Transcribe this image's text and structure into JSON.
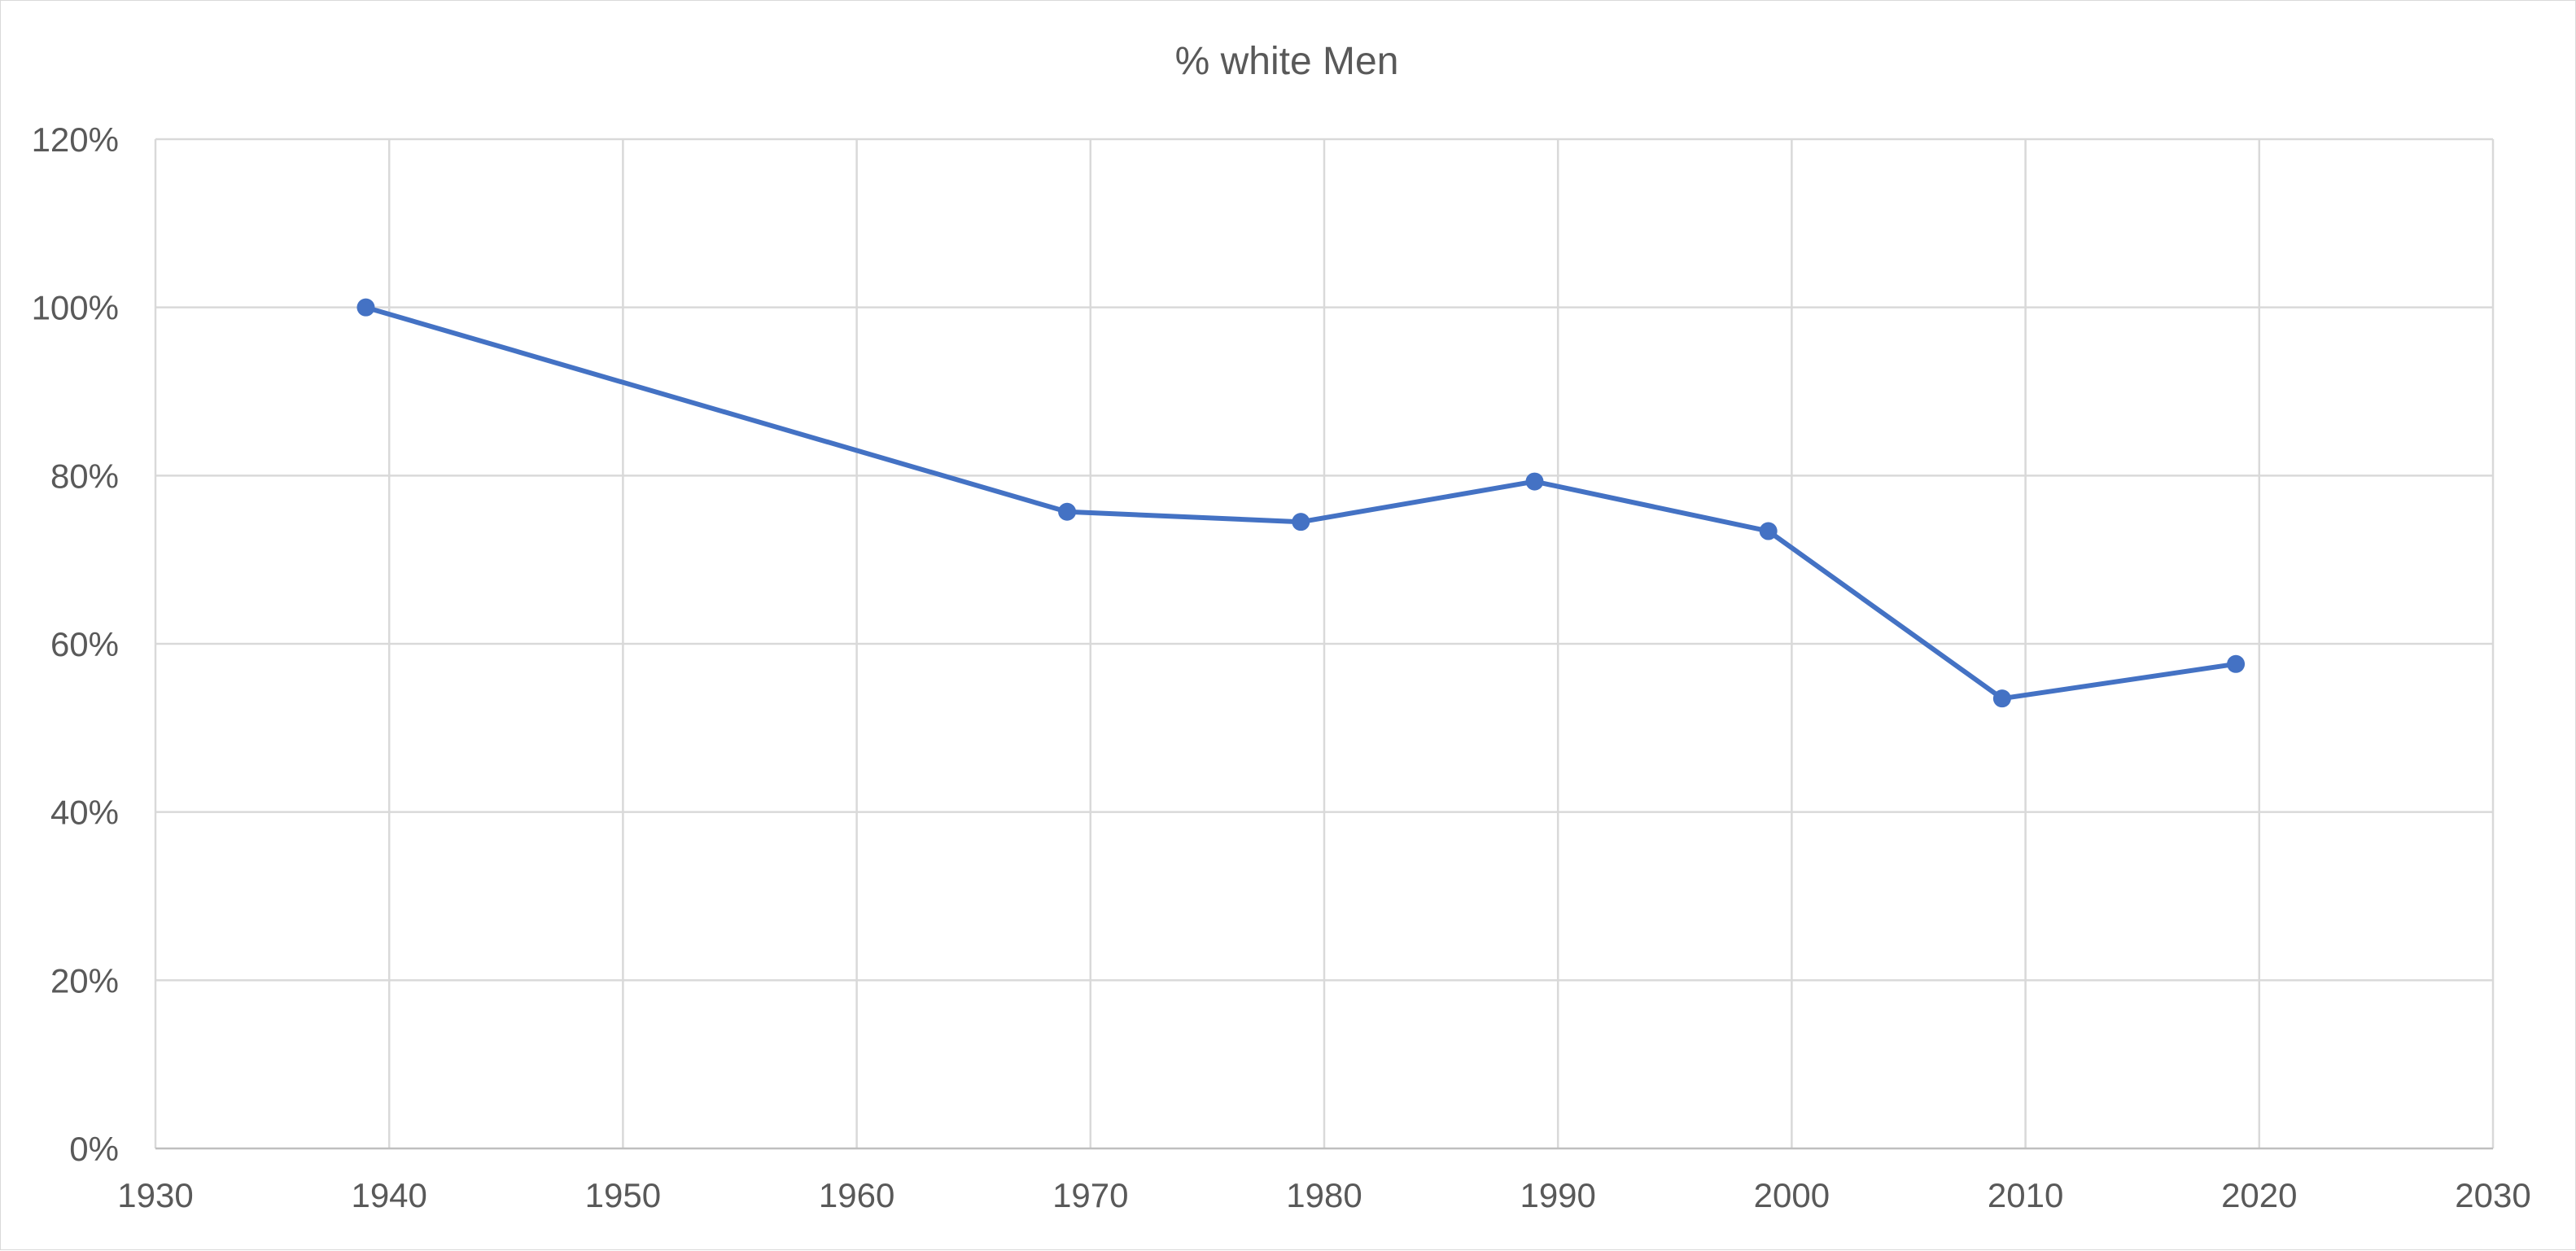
{
  "chart_data": {
    "type": "scatter",
    "title": "% white Men",
    "xlabel": "",
    "ylabel": "",
    "xlim": [
      1930,
      2030
    ],
    "ylim": [
      0,
      1.2
    ],
    "x_ticks": [
      1930,
      1940,
      1950,
      1960,
      1970,
      1980,
      1990,
      2000,
      2010,
      2020,
      2030
    ],
    "x_tick_labels": [
      "1930",
      "1940",
      "1950",
      "1960",
      "1970",
      "1980",
      "1990",
      "2000",
      "2010",
      "2020",
      "2030"
    ],
    "y_ticks": [
      0,
      0.2,
      0.4,
      0.6,
      0.8,
      1.0,
      1.2
    ],
    "y_tick_labels": [
      "0%",
      "20%",
      "40%",
      "60%",
      "80%",
      "100%",
      "120%"
    ],
    "grid": true,
    "legend": "none",
    "series": [
      {
        "color": "#4472c4",
        "x": [
          1939,
          1969,
          1979,
          1989,
          1999,
          2009,
          2019
        ],
        "y": [
          1.0,
          0.757,
          0.745,
          0.793,
          0.734,
          0.535,
          0.576
        ]
      }
    ]
  }
}
